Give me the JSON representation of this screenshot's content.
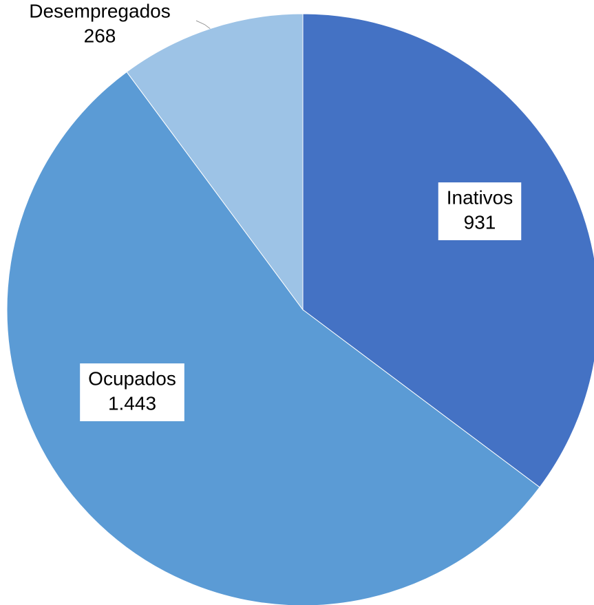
{
  "chart_data": {
    "type": "pie",
    "categories": [
      "Inativos",
      "Ocupados",
      "Desempregados"
    ],
    "values": [
      931,
      1443,
      268
    ],
    "value_labels": [
      "931",
      "1.443",
      "268"
    ],
    "colors": [
      "#4472c4",
      "#5b9bd5",
      "#9dc3e6"
    ]
  }
}
